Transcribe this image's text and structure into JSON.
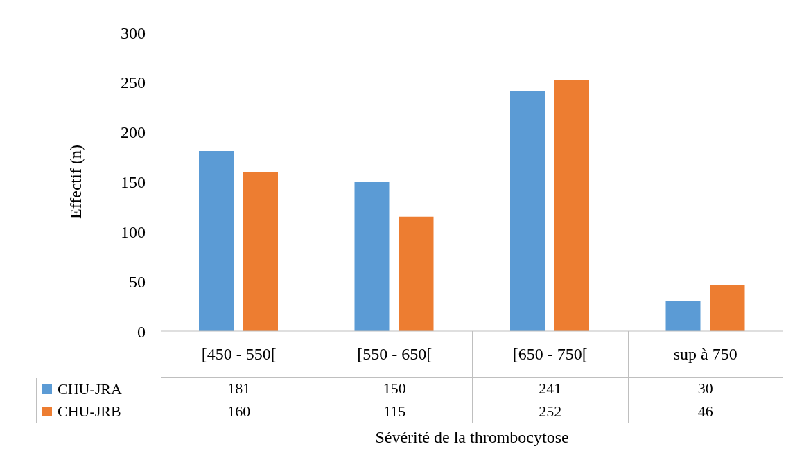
{
  "chart_data": {
    "type": "bar",
    "xlabel": "Sévérité de la thrombocytose",
    "ylabel": "Effectif (n)",
    "categories": [
      "[450 - 550[",
      "[550 - 650[",
      "[650 - 750[",
      "sup à 750"
    ],
    "series": [
      {
        "name": "CHU-JRA",
        "color": "#5b9bd5",
        "values": [
          181,
          150,
          241,
          30
        ]
      },
      {
        "name": "CHU-JRB",
        "color": "#ed7d31",
        "values": [
          160,
          115,
          252,
          46
        ]
      }
    ],
    "ylim": [
      0,
      300
    ],
    "yticks": [
      0,
      50,
      100,
      150,
      200,
      250,
      300
    ],
    "grid": false,
    "legend": "bottom",
    "data_labels": true
  }
}
